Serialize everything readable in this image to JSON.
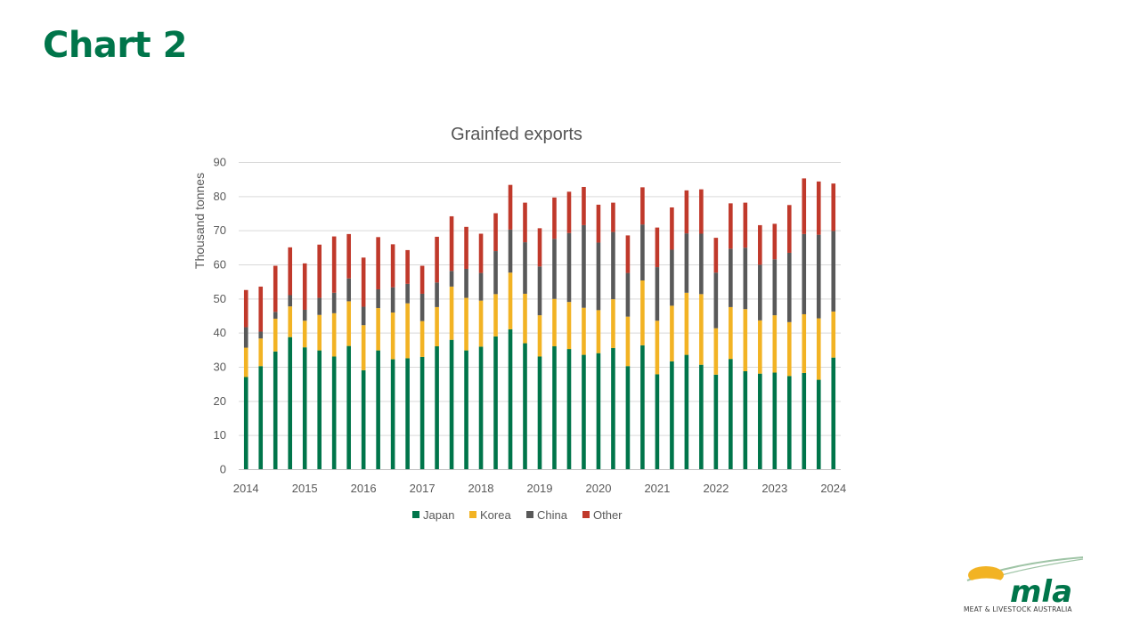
{
  "slide": {
    "title": "Chart 2"
  },
  "chart_data": {
    "type": "bar",
    "stacked": true,
    "title": "Grainfed exports",
    "xlabel": "",
    "ylabel": "Thousand tonnes",
    "ylim": [
      0,
      90
    ],
    "yticks": [
      0,
      10,
      20,
      30,
      40,
      50,
      60,
      70,
      80,
      90
    ],
    "xticks": [
      "2014",
      "2015",
      "2016",
      "2017",
      "2018",
      "2019",
      "2020",
      "2021",
      "2022",
      "2023",
      "2024"
    ],
    "grid": true,
    "legend_position": "bottom",
    "x": [
      "2014-01",
      "2014-04",
      "2014-07",
      "2014-10",
      "2015-01",
      "2015-04",
      "2015-07",
      "2015-10",
      "2016-01",
      "2016-04",
      "2016-07",
      "2016-10",
      "2017-01",
      "2017-04",
      "2017-07",
      "2017-10",
      "2018-01",
      "2018-04",
      "2018-07",
      "2018-10",
      "2019-01",
      "2019-04",
      "2019-07",
      "2019-10",
      "2020-01",
      "2020-04",
      "2020-07",
      "2020-10",
      "2021-01",
      "2021-04",
      "2021-07",
      "2021-10",
      "2022-01",
      "2022-04",
      "2022-07",
      "2022-10",
      "2023-01",
      "2023-04",
      "2023-07",
      "2023-10",
      "2024-01"
    ],
    "series": [
      {
        "name": "Japan",
        "color": "#00754a",
        "values": [
          27.0,
          30.2,
          34.5,
          38.7,
          35.7,
          34.8,
          33.0,
          36.1,
          29.0,
          34.8,
          32.2,
          32.5,
          32.9,
          36.0,
          37.9,
          34.8,
          35.9,
          38.9,
          41.0,
          36.9,
          33.0,
          36.0,
          35.2,
          33.5,
          34.0,
          35.5,
          30.2,
          36.3,
          27.8,
          31.6,
          33.5,
          30.6,
          27.7,
          32.3,
          28.7,
          28.0,
          28.3,
          27.3,
          28.2,
          26.2,
          32.7
        ]
      },
      {
        "name": "Korea",
        "color": "#f2b324",
        "values": [
          8.6,
          8.1,
          9.6,
          9.0,
          7.8,
          10.4,
          12.7,
          13.1,
          13.2,
          12.4,
          13.7,
          16.1,
          10.5,
          11.5,
          15.6,
          15.4,
          13.5,
          12.4,
          16.6,
          14.5,
          12.1,
          13.9,
          13.8,
          13.8,
          12.6,
          14.3,
          14.5,
          19.0,
          15.7,
          16.3,
          18.2,
          20.7,
          13.6,
          15.2,
          18.2,
          15.6,
          16.8,
          15.8,
          17.2,
          18.0,
          13.5
        ]
      },
      {
        "name": "China",
        "color": "#595959",
        "values": [
          6.0,
          2.0,
          2.0,
          3.3,
          3.2,
          5.0,
          6.0,
          6.7,
          5.4,
          5.5,
          7.4,
          5.7,
          8.0,
          7.2,
          4.6,
          8.5,
          8.1,
          12.6,
          12.6,
          15.1,
          14.3,
          17.6,
          20.2,
          24.2,
          19.8,
          19.7,
          12.8,
          16.4,
          15.7,
          16.4,
          17.4,
          17.7,
          16.3,
          17.1,
          18.0,
          16.3,
          16.4,
          20.3,
          23.5,
          24.5,
          23.6
        ]
      },
      {
        "name": "Other",
        "color": "#c0392b",
        "values": [
          10.9,
          13.2,
          13.5,
          14.0,
          13.6,
          15.6,
          16.5,
          13.0,
          14.4,
          15.3,
          12.6,
          9.9,
          8.2,
          13.4,
          16.0,
          12.3,
          11.5,
          11.1,
          13.1,
          11.6,
          11.2,
          12.1,
          12.1,
          11.2,
          11.1,
          8.6,
          11.0,
          10.9,
          11.6,
          12.4,
          12.6,
          13.0,
          10.2,
          13.3,
          13.2,
          11.6,
          10.4,
          14.0,
          16.3,
          15.6,
          13.9
        ]
      }
    ]
  },
  "logo": {
    "mark": "mla",
    "tagline": "MEAT & LIVESTOCK AUSTRALIA"
  }
}
